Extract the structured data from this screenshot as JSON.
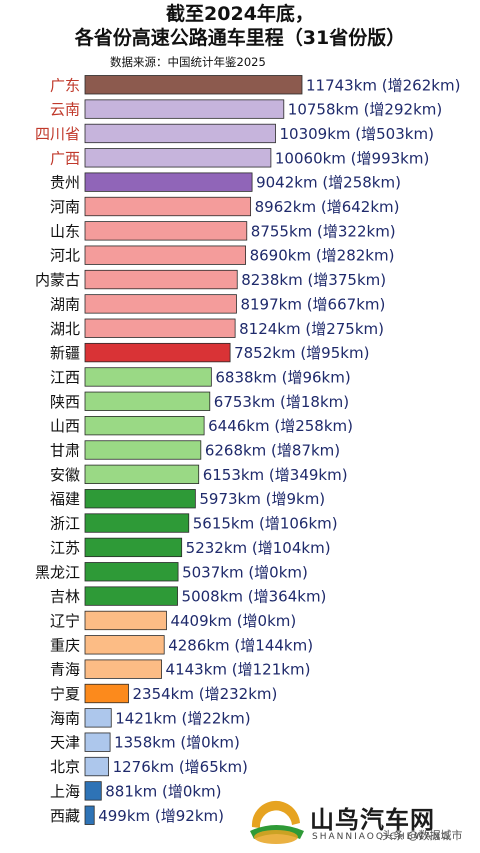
{
  "title_line1": "截至2024年底，",
  "title_line2": "各省份高速公路通车里程（31省份版）",
  "source": "数据来源：中国统计年鉴2025",
  "watermark": {
    "brand": "山鸟汽车网",
    "sub": "SHANNIAOQICHEWANG",
    "tag": "头条 @数据城市"
  },
  "chart_data": {
    "type": "bar",
    "orientation": "horizontal",
    "title": "截至2024年底，各省份高速公路通车里程（31省份版）",
    "unit": "km",
    "xlim": [
      0,
      11743
    ],
    "categories": [
      "广东",
      "云南",
      "四川省",
      "广西",
      "贵州",
      "河南",
      "山东",
      "河北",
      "内蒙古",
      "湖南",
      "湖北",
      "新疆",
      "江西",
      "陕西",
      "山西",
      "甘肃",
      "安徽",
      "福建",
      "浙江",
      "江苏",
      "黑龙江",
      "吉林",
      "辽宁",
      "重庆",
      "青海",
      "宁夏",
      "海南",
      "天津",
      "北京",
      "上海",
      "西藏"
    ],
    "values": [
      11743,
      10758,
      10309,
      10060,
      9042,
      8962,
      8755,
      8690,
      8238,
      8197,
      8124,
      7852,
      6838,
      6753,
      6446,
      6268,
      6153,
      5973,
      5615,
      5232,
      5037,
      5008,
      4409,
      4286,
      4143,
      2354,
      1421,
      1358,
      1276,
      881,
      499
    ],
    "increases": [
      262,
      292,
      503,
      993,
      258,
      642,
      322,
      282,
      375,
      667,
      275,
      95,
      96,
      18,
      258,
      87,
      349,
      9,
      106,
      104,
      0,
      364,
      0,
      144,
      121,
      232,
      22,
      0,
      65,
      0,
      92
    ],
    "value_labels": [
      "11743km (增262km)",
      "10758km (增292km)",
      "10309km (增503km)",
      "10060km (增993km)",
      "9042km (增258km)",
      "8962km (增642km)",
      "8755km (增322km)",
      "8690km (增282km)",
      "8238km (增375km)",
      "8197km (增667km)",
      "8124km (增275km)",
      "7852km (增95km)",
      "6838km (增96km)",
      "6753km (增18km)",
      "6446km (增258km)",
      "6268km (增87km)",
      "6153km (增349km)",
      "5973km (增9km)",
      "5615km (增106km)",
      "5232km (增104km)",
      "5037km (增0km)",
      "5008km (增364km)",
      "4409km (增0km)",
      "4286km (增144km)",
      "4143km (增121km)",
      "2354km (增232km)",
      "1421km (增22km)",
      "1358km (增0km)",
      "1276km (增65km)",
      "881km (增0km)",
      "499km (增92km)"
    ],
    "bar_colors": [
      "#8c5a4e",
      "#c6b4dc",
      "#c6b4dc",
      "#c6b4dc",
      "#9065b8",
      "#f49c9b",
      "#f49c9b",
      "#f49c9b",
      "#f49c9b",
      "#f49c9b",
      "#f49c9b",
      "#d93336",
      "#9ad985",
      "#9ad985",
      "#9ad985",
      "#9ad985",
      "#9ad985",
      "#2e9a37",
      "#2e9a37",
      "#2e9a37",
      "#2e9a37",
      "#2e9a37",
      "#fcbc85",
      "#fcbc85",
      "#fcbc85",
      "#fc8a1c",
      "#adc7ec",
      "#adc7ec",
      "#adc7ec",
      "#2e73b6",
      "#2e73b6"
    ],
    "label_colors": [
      "#c0392b",
      "#c0392b",
      "#c0392b",
      "#c0392b",
      "#111111",
      "#111111",
      "#111111",
      "#111111",
      "#111111",
      "#111111",
      "#111111",
      "#111111",
      "#111111",
      "#111111",
      "#111111",
      "#111111",
      "#111111",
      "#111111",
      "#111111",
      "#111111",
      "#111111",
      "#111111",
      "#111111",
      "#111111",
      "#111111",
      "#111111",
      "#111111",
      "#111111",
      "#111111",
      "#111111",
      "#111111"
    ],
    "value_label_color": "#1f2a6b"
  }
}
